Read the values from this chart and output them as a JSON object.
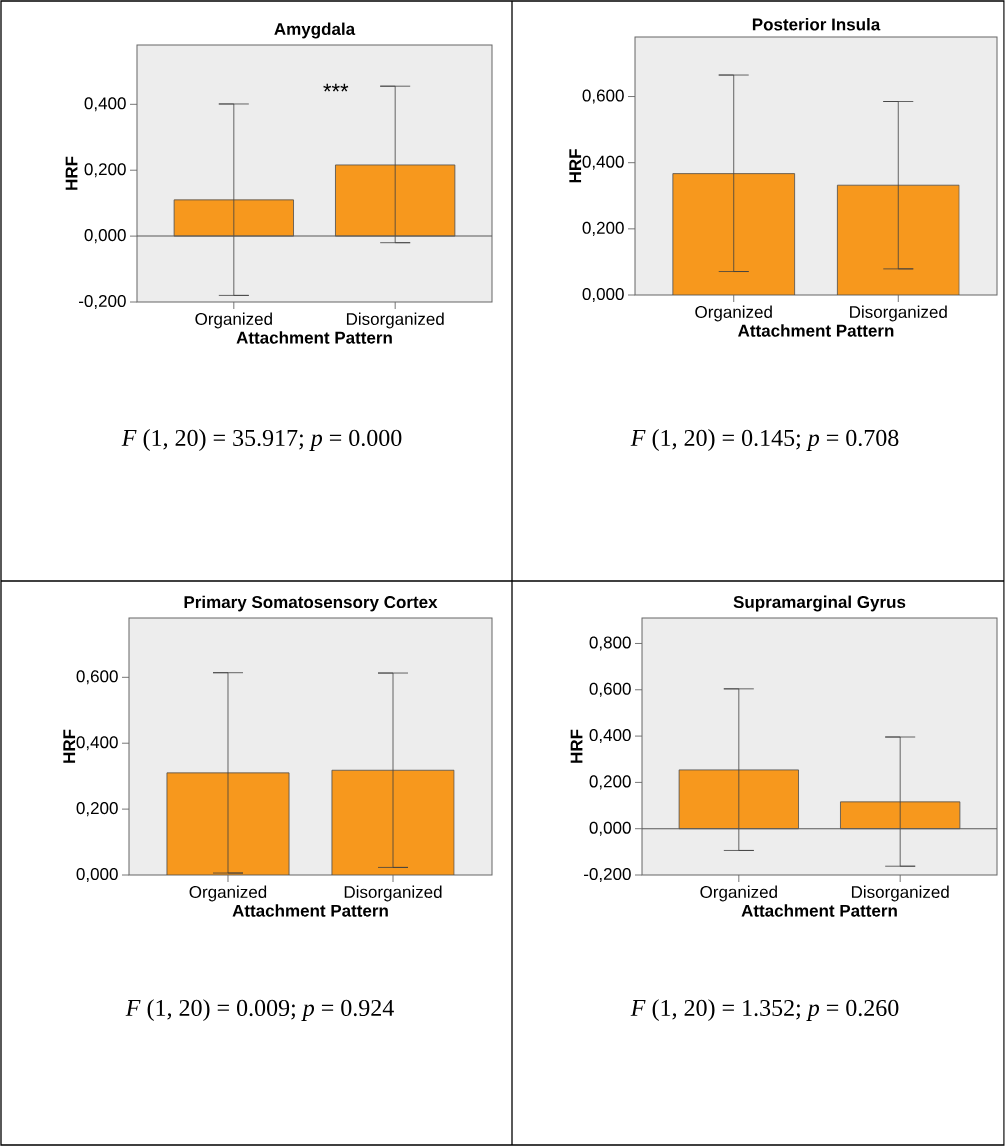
{
  "chart_data": [
    {
      "type": "bar",
      "title": "Amygdala",
      "xlabel": "Attachment Pattern",
      "ylabel": "HRF",
      "categories": [
        "Organized",
        "Disorganized"
      ],
      "values": [
        0.11,
        0.216
      ],
      "errors": [
        [
          -0.18,
          0.401
        ],
        [
          -0.02,
          0.455
        ]
      ],
      "color": "#f7981d",
      "ylim": [
        -0.2,
        0.58
      ],
      "yticks": [
        {
          "value": -0.2,
          "label": "-0,200"
        },
        {
          "value": 0,
          "label": "0,000"
        },
        {
          "value": 0.2,
          "label": "0,200"
        },
        {
          "value": 0.4,
          "label": "0,400"
        }
      ],
      "grid": false,
      "ref_lines": [
        {
          "axis": "y",
          "value": 0
        }
      ],
      "annotations": [
        "***",
        "*F* (1, 20) = 35.917; *p* = 0.000"
      ]
    },
    {
      "type": "bar",
      "title": "Posterior Insula",
      "xlabel": "Attachment Pattern",
      "ylabel": "HRF",
      "categories": [
        "Organized",
        "Disorganized"
      ],
      "values": [
        0.367,
        0.332
      ],
      "errors": [
        [
          0.071,
          0.665
        ],
        [
          0.079,
          0.585
        ]
      ],
      "color": "#f7981d",
      "ylim": [
        0,
        0.78
      ],
      "yticks": [
        {
          "value": 0,
          "label": "0,000"
        },
        {
          "value": 0.2,
          "label": "0,200"
        },
        {
          "value": 0.4,
          "label": "0,400"
        },
        {
          "value": 0.6,
          "label": "0,600"
        }
      ],
      "grid": false,
      "annotations": [
        "*F* (1, 20) = 0.145; *p* = 0.708"
      ]
    },
    {
      "type": "bar",
      "title": "Primary Somatosensory Cortex",
      "xlabel": "Attachment Pattern",
      "ylabel": "HRF",
      "categories": [
        "Organized",
        "Disorganized"
      ],
      "values": [
        0.31,
        0.318
      ],
      "errors": [
        [
          0.006,
          0.614
        ],
        [
          0.023,
          0.613
        ]
      ],
      "color": "#f7981d",
      "ylim": [
        0,
        0.78
      ],
      "yticks": [
        {
          "value": 0,
          "label": "0,000"
        },
        {
          "value": 0.2,
          "label": "0,200"
        },
        {
          "value": 0.4,
          "label": "0,400"
        },
        {
          "value": 0.6,
          "label": "0,600"
        }
      ],
      "grid": false,
      "annotations": [
        "*F* (1, 20) = 0.009; *p* = 0.924"
      ]
    },
    {
      "type": "bar",
      "title": "Supramarginal Gyrus",
      "xlabel": "Attachment Pattern",
      "ylabel": "HRF",
      "categories": [
        "Organized",
        "Disorganized"
      ],
      "values": [
        0.254,
        0.116
      ],
      "errors": [
        [
          -0.094,
          0.604
        ],
        [
          -0.162,
          0.396
        ]
      ],
      "color": "#f7981d",
      "ylim": [
        -0.2,
        0.91
      ],
      "yticks": [
        {
          "value": -0.2,
          "label": "-0,200"
        },
        {
          "value": 0,
          "label": "0,000"
        },
        {
          "value": 0.2,
          "label": "0,200"
        },
        {
          "value": 0.4,
          "label": "0,400"
        },
        {
          "value": 0.6,
          "label": "0,600"
        },
        {
          "value": 0.8,
          "label": "0,800"
        }
      ],
      "grid": false,
      "ref_lines": [
        {
          "axis": "y",
          "value": 0
        }
      ],
      "annotations": [
        "*F* (1, 20) = 1.352; *p* = 0.260"
      ]
    }
  ]
}
